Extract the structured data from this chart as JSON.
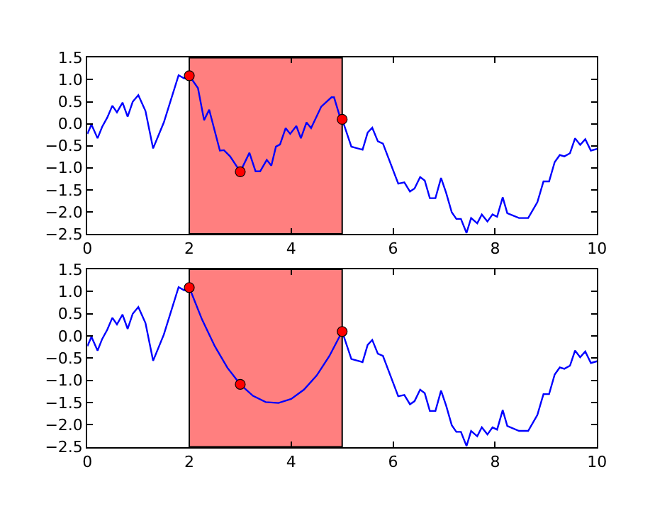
{
  "chart_data": [
    {
      "type": "line",
      "xlim": [
        0,
        10
      ],
      "ylim": [
        -2.5,
        1.5
      ],
      "xticks": [
        0,
        2,
        4,
        6,
        8,
        10
      ],
      "yticks": [
        {
          "value": -2.5,
          "label": "−2.5"
        },
        {
          "value": -2.0,
          "label": "−2.0"
        },
        {
          "value": -1.5,
          "label": "−1.5"
        },
        {
          "value": -1.0,
          "label": "−1.0"
        },
        {
          "value": -0.5,
          "label": "−0.5"
        },
        {
          "value": 0.0,
          "label": "0.0"
        },
        {
          "value": 0.5,
          "label": "0.5"
        },
        {
          "value": 1.0,
          "label": "1.0"
        },
        {
          "value": 1.5,
          "label": "1.5"
        }
      ],
      "grid": false,
      "bands": [
        {
          "axis": "x",
          "from": 2,
          "to": 5,
          "color": "#ff7f7f"
        }
      ],
      "series": [
        {
          "color": "#0000ff",
          "marker": "none",
          "x": [
            0,
            0.08,
            0.2,
            0.29,
            0.39,
            0.49,
            0.58,
            0.69,
            0.79,
            0.89,
            1.0,
            1.14,
            1.29,
            1.5,
            1.79,
            1.9,
            2.0,
            2.17,
            2.29,
            2.39,
            2.6,
            2.68,
            2.8,
            3.0,
            3.18,
            3.3,
            3.39,
            3.52,
            3.61,
            3.7,
            3.78,
            3.89,
            3.98,
            4.1,
            4.19,
            4.3,
            4.39,
            4.59,
            4.79,
            4.84,
            4.96,
            5.0,
            5.18,
            5.4,
            5.5,
            5.59,
            5.7,
            5.8,
            6.1,
            6.22,
            6.33,
            6.42,
            6.53,
            6.62,
            6.72,
            6.83,
            6.94,
            7.04,
            7.15,
            7.24,
            7.33,
            7.44,
            7.53,
            7.65,
            7.74,
            7.85,
            7.95,
            8.04,
            8.15,
            8.24,
            8.47,
            8.65,
            8.83,
            8.95,
            9.06,
            9.17,
            9.27,
            9.36,
            9.47,
            9.57,
            9.67,
            9.77,
            9.88,
            10.0
          ],
          "values": [
            -0.23,
            -0.02,
            -0.33,
            -0.07,
            0.14,
            0.41,
            0.26,
            0.48,
            0.16,
            0.5,
            0.65,
            0.29,
            -0.56,
            0.03,
            1.1,
            1.03,
            1.09,
            0.81,
            0.08,
            0.32,
            -0.61,
            -0.6,
            -0.74,
            -1.09,
            -0.66,
            -1.08,
            -1.08,
            -0.82,
            -0.95,
            -0.52,
            -0.47,
            -0.1,
            -0.23,
            -0.05,
            -0.33,
            0.03,
            -0.1,
            0.39,
            0.6,
            0.6,
            0.14,
            0.1,
            -0.52,
            -0.59,
            -0.2,
            -0.09,
            -0.4,
            -0.45,
            -1.36,
            -1.33,
            -1.54,
            -1.47,
            -1.21,
            -1.29,
            -1.69,
            -1.69,
            -1.23,
            -1.57,
            -2.01,
            -2.16,
            -2.16,
            -2.48,
            -2.14,
            -2.26,
            -2.06,
            -2.22,
            -2.06,
            -2.11,
            -1.67,
            -2.03,
            -2.14,
            -2.14,
            -1.78,
            -1.31,
            -1.31,
            -0.87,
            -0.71,
            -0.74,
            -0.67,
            -0.33,
            -0.48,
            -0.35,
            -0.61,
            -0.57
          ]
        },
        {
          "type": "scatter",
          "color": "#ff0000",
          "marker": "circle",
          "x": [
            2.0,
            3.0,
            5.0
          ],
          "values": [
            1.09,
            -1.09,
            0.1
          ]
        }
      ]
    },
    {
      "type": "line",
      "xlim": [
        0,
        10
      ],
      "ylim": [
        -2.5,
        1.5
      ],
      "xticks": [
        0,
        2,
        4,
        6,
        8,
        10
      ],
      "yticks": [
        {
          "value": -2.5,
          "label": "−2.5"
        },
        {
          "value": -2.0,
          "label": "−2.0"
        },
        {
          "value": -1.5,
          "label": "−1.5"
        },
        {
          "value": -1.0,
          "label": "−1.0"
        },
        {
          "value": -0.5,
          "label": "−0.5"
        },
        {
          "value": 0.0,
          "label": "0.0"
        },
        {
          "value": 0.5,
          "label": "0.5"
        },
        {
          "value": 1.0,
          "label": "1.0"
        },
        {
          "value": 1.5,
          "label": "1.5"
        }
      ],
      "grid": false,
      "bands": [
        {
          "axis": "x",
          "from": 2,
          "to": 5,
          "color": "#ff7f7f"
        }
      ],
      "series": [
        {
          "color": "#0000ff",
          "marker": "none",
          "x": [
            0,
            0.08,
            0.2,
            0.29,
            0.39,
            0.49,
            0.58,
            0.69,
            0.79,
            0.89,
            1.0,
            1.14,
            1.29,
            1.5,
            1.79,
            1.9,
            2.0,
            2.25,
            2.5,
            2.75,
            3.0,
            3.25,
            3.5,
            3.75,
            4.0,
            4.25,
            4.5,
            4.75,
            5.0,
            5.18,
            5.4,
            5.5,
            5.59,
            5.7,
            5.8,
            6.1,
            6.22,
            6.33,
            6.42,
            6.53,
            6.62,
            6.72,
            6.83,
            6.94,
            7.04,
            7.15,
            7.24,
            7.33,
            7.44,
            7.53,
            7.65,
            7.74,
            7.85,
            7.95,
            8.04,
            8.15,
            8.24,
            8.47,
            8.65,
            8.83,
            8.95,
            9.06,
            9.17,
            9.27,
            9.36,
            9.47,
            9.57,
            9.67,
            9.77,
            9.88,
            10.0
          ],
          "values": [
            -0.23,
            -0.02,
            -0.33,
            -0.07,
            0.14,
            0.41,
            0.26,
            0.48,
            0.16,
            0.5,
            0.65,
            0.29,
            -0.56,
            0.03,
            1.1,
            1.03,
            1.09,
            0.37,
            -0.23,
            -0.72,
            -1.09,
            -1.35,
            -1.49,
            -1.51,
            -1.42,
            -1.21,
            -0.89,
            -0.45,
            0.1,
            -0.52,
            -0.59,
            -0.2,
            -0.09,
            -0.4,
            -0.45,
            -1.36,
            -1.33,
            -1.54,
            -1.47,
            -1.21,
            -1.29,
            -1.69,
            -1.69,
            -1.23,
            -1.57,
            -2.01,
            -2.16,
            -2.16,
            -2.48,
            -2.14,
            -2.26,
            -2.06,
            -2.22,
            -2.06,
            -2.11,
            -1.67,
            -2.03,
            -2.14,
            -2.14,
            -1.78,
            -1.31,
            -1.31,
            -0.87,
            -0.71,
            -0.74,
            -0.67,
            -0.33,
            -0.48,
            -0.35,
            -0.61,
            -0.57
          ]
        },
        {
          "type": "scatter",
          "color": "#ff0000",
          "marker": "circle",
          "x": [
            2.0,
            3.0,
            5.0
          ],
          "values": [
            1.09,
            -1.09,
            0.1
          ]
        }
      ]
    }
  ]
}
